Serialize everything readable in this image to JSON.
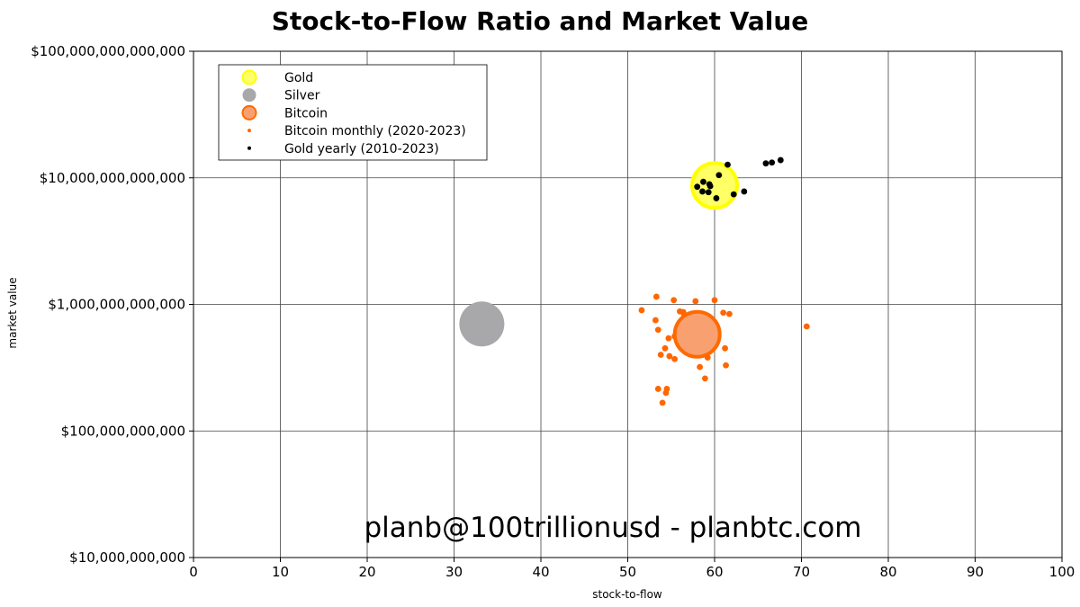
{
  "chart_data": {
    "type": "scatter",
    "title": "Stock-to-Flow Ratio and Market Value",
    "xlabel": "stock-to-flow",
    "ylabel": "market value",
    "xlim": [
      0,
      100
    ],
    "ylim": [
      10000000000,
      100000000000000
    ],
    "y_scale": "log",
    "x_ticks": [
      "0",
      "10",
      "20",
      "30",
      "40",
      "50",
      "60",
      "70",
      "80",
      "90",
      "100"
    ],
    "y_ticks": [
      "$10,000,000,000",
      "$100,000,000,000",
      "$1,000,000,000,000",
      "$10,000,000,000,000",
      "$100,000,000,000,000"
    ],
    "grid": true,
    "legend_position": "top-left",
    "watermark": "planb@100trillionusd  -  planbtc.com",
    "series": [
      {
        "name": "Gold",
        "marker": "large-circle",
        "fill": "#ffff66",
        "stroke": "#ffff00",
        "points": [
          {
            "x": 60,
            "y": 8700000000000
          }
        ]
      },
      {
        "name": "Silver",
        "marker": "large-circle",
        "fill": "#a8a8ab",
        "stroke": "#a8a8ab",
        "points": [
          {
            "x": 33.2,
            "y": 700000000000
          }
        ]
      },
      {
        "name": "Bitcoin",
        "marker": "large-circle",
        "fill": "#f9a070",
        "stroke": "#ff6a00",
        "points": [
          {
            "x": 58,
            "y": 580000000000
          }
        ]
      },
      {
        "name": "Bitcoin monthly (2020-2023)",
        "marker": "dot",
        "color": "#ff6600",
        "points": [
          {
            "x": 51.6,
            "y": 900000000000
          },
          {
            "x": 53.3,
            "y": 1150000000000
          },
          {
            "x": 55.3,
            "y": 1080000000000
          },
          {
            "x": 57.8,
            "y": 1060000000000
          },
          {
            "x": 60.0,
            "y": 1080000000000
          },
          {
            "x": 53.2,
            "y": 750000000000
          },
          {
            "x": 53.5,
            "y": 630000000000
          },
          {
            "x": 56.0,
            "y": 880000000000
          },
          {
            "x": 56.4,
            "y": 870000000000
          },
          {
            "x": 57.5,
            "y": 760000000000
          },
          {
            "x": 56.5,
            "y": 820000000000
          },
          {
            "x": 61.0,
            "y": 860000000000
          },
          {
            "x": 61.7,
            "y": 840000000000
          },
          {
            "x": 55.4,
            "y": 560000000000
          },
          {
            "x": 54.7,
            "y": 540000000000
          },
          {
            "x": 55.9,
            "y": 530000000000
          },
          {
            "x": 56.8,
            "y": 620000000000
          },
          {
            "x": 58.5,
            "y": 570000000000
          },
          {
            "x": 60.2,
            "y": 570000000000
          },
          {
            "x": 54.3,
            "y": 450000000000
          },
          {
            "x": 53.8,
            "y": 400000000000
          },
          {
            "x": 54.8,
            "y": 390000000000
          },
          {
            "x": 55.4,
            "y": 370000000000
          },
          {
            "x": 58.8,
            "y": 450000000000
          },
          {
            "x": 59.2,
            "y": 380000000000
          },
          {
            "x": 58.3,
            "y": 320000000000
          },
          {
            "x": 61.2,
            "y": 450000000000
          },
          {
            "x": 61.3,
            "y": 330000000000
          },
          {
            "x": 58.9,
            "y": 260000000000
          },
          {
            "x": 53.5,
            "y": 215000000000
          },
          {
            "x": 54.5,
            "y": 215000000000
          },
          {
            "x": 54.4,
            "y": 200000000000
          },
          {
            "x": 54.0,
            "y": 167000000000
          },
          {
            "x": 70.6,
            "y": 670000000000
          }
        ]
      },
      {
        "name": "Gold yearly (2010-2023)",
        "marker": "dot",
        "color": "#000000",
        "points": [
          {
            "x": 58.0,
            "y": 8500000000000
          },
          {
            "x": 58.7,
            "y": 9300000000000
          },
          {
            "x": 59.4,
            "y": 8900000000000
          },
          {
            "x": 59.5,
            "y": 8600000000000
          },
          {
            "x": 60.5,
            "y": 10500000000000
          },
          {
            "x": 61.5,
            "y": 12700000000000
          },
          {
            "x": 58.6,
            "y": 7800000000000
          },
          {
            "x": 59.3,
            "y": 7700000000000
          },
          {
            "x": 60.2,
            "y": 6900000000000
          },
          {
            "x": 62.2,
            "y": 7400000000000
          },
          {
            "x": 63.4,
            "y": 7800000000000
          },
          {
            "x": 65.9,
            "y": 13000000000000
          },
          {
            "x": 66.6,
            "y": 13200000000000
          },
          {
            "x": 67.6,
            "y": 13800000000000
          }
        ]
      }
    ]
  }
}
